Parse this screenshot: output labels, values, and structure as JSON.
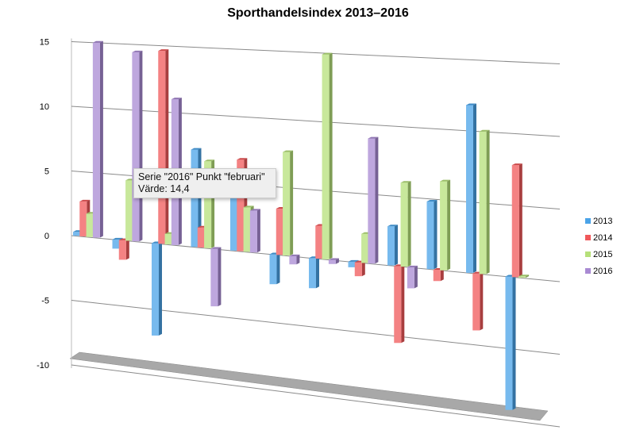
{
  "chart_data": {
    "type": "bar",
    "style": "3d-clustered-column",
    "title": "Sporthandelsindex 2013–2016",
    "xlabel": "",
    "ylabel": "",
    "ylim": [
      -10,
      15
    ],
    "yticks": [
      "15",
      "10",
      "5",
      "0",
      "-5",
      "-10"
    ],
    "grid": true,
    "legend_placement": "right",
    "series": [
      {
        "name": "2013",
        "color": "#4aa3e8",
        "values": [
          0.3,
          -0.7,
          -7.0,
          7.3,
          4.5,
          -2.2,
          -2.2,
          -0.4,
          2.8,
          4.8,
          11.8,
          -9.3
        ]
      },
      {
        "name": "2014",
        "color": "#f0585a",
        "values": [
          2.7,
          -1.5,
          14.6,
          1.5,
          6.8,
          3.4,
          2.4,
          -1.0,
          -5.5,
          -0.8,
          -4.0,
          7.8
        ]
      },
      {
        "name": "2015",
        "color": "#b6e07a",
        "values": [
          1.8,
          4.6,
          0.8,
          6.5,
          3.3,
          7.6,
          14.9,
          2.1,
          6.0,
          6.3,
          10.0,
          0.1
        ]
      },
      {
        "name": "2016",
        "color": "#a98ad3",
        "values": [
          15.0,
          14.4,
          11.0,
          -4.3,
          3.1,
          -0.6,
          -0.3,
          9.0,
          -1.5,
          null,
          null,
          null
        ]
      }
    ]
  },
  "tooltip": {
    "line1": "Serie \"2016\" Punkt \"februari\"",
    "line2": "Värde: 14,4"
  }
}
